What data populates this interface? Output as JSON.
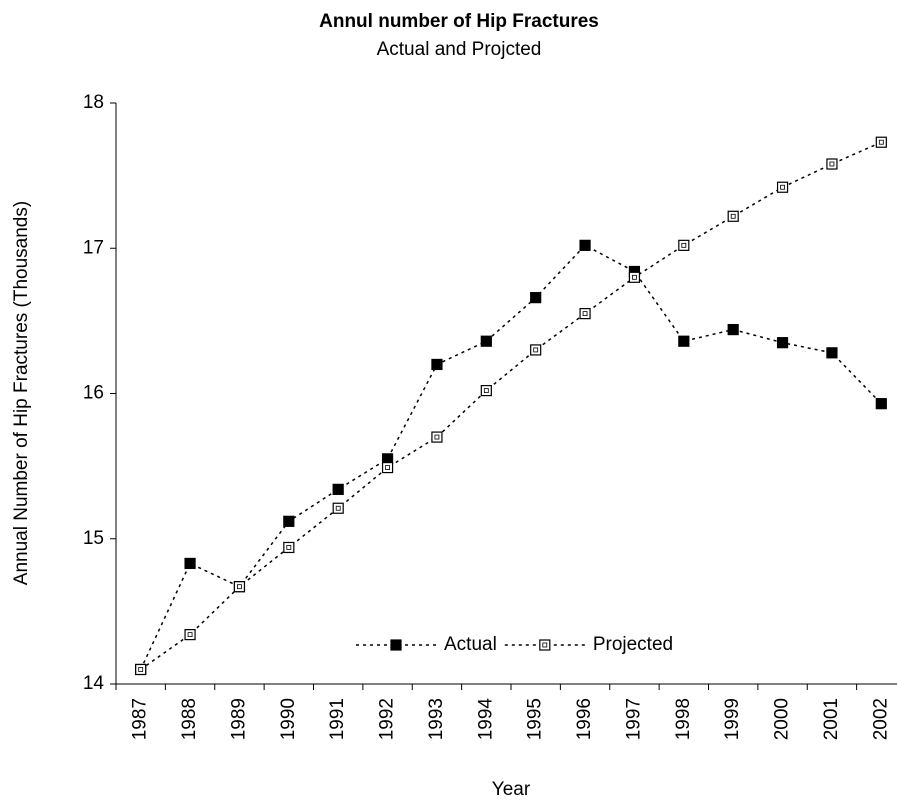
{
  "chart_data": {
    "type": "line",
    "title": "Annul number of Hip Fractures",
    "subtitle": "Actual and Projcted",
    "x_label": "Year",
    "y_label": "Annual Number of Hip Fractures (Thousands)",
    "categories": [
      "1987",
      "1988",
      "1989",
      "1990",
      "1991",
      "1992",
      "1993",
      "1994",
      "1995",
      "1996",
      "1997",
      "1998",
      "1999",
      "2000",
      "2001",
      "2002"
    ],
    "series": [
      {
        "name": "Actual",
        "color": "#000000",
        "marker": "filled-square",
        "values": [
          14.1,
          14.83,
          14.67,
          15.12,
          15.34,
          15.55,
          16.2,
          16.36,
          16.66,
          17.02,
          16.84,
          16.36,
          16.44,
          16.35,
          16.28,
          15.93
        ]
      },
      {
        "name": "Projected",
        "color": "#000000",
        "marker": "open-square",
        "values": [
          14.1,
          14.34,
          14.67,
          14.94,
          15.21,
          15.49,
          15.7,
          16.02,
          16.3,
          16.55,
          16.8,
          17.02,
          17.22,
          17.42,
          17.58,
          17.73
        ]
      }
    ],
    "ylim": [
      14,
      18
    ],
    "yticks": [
      14,
      15,
      16,
      17,
      18
    ],
    "legend": "bottom-center",
    "grid": false
  }
}
